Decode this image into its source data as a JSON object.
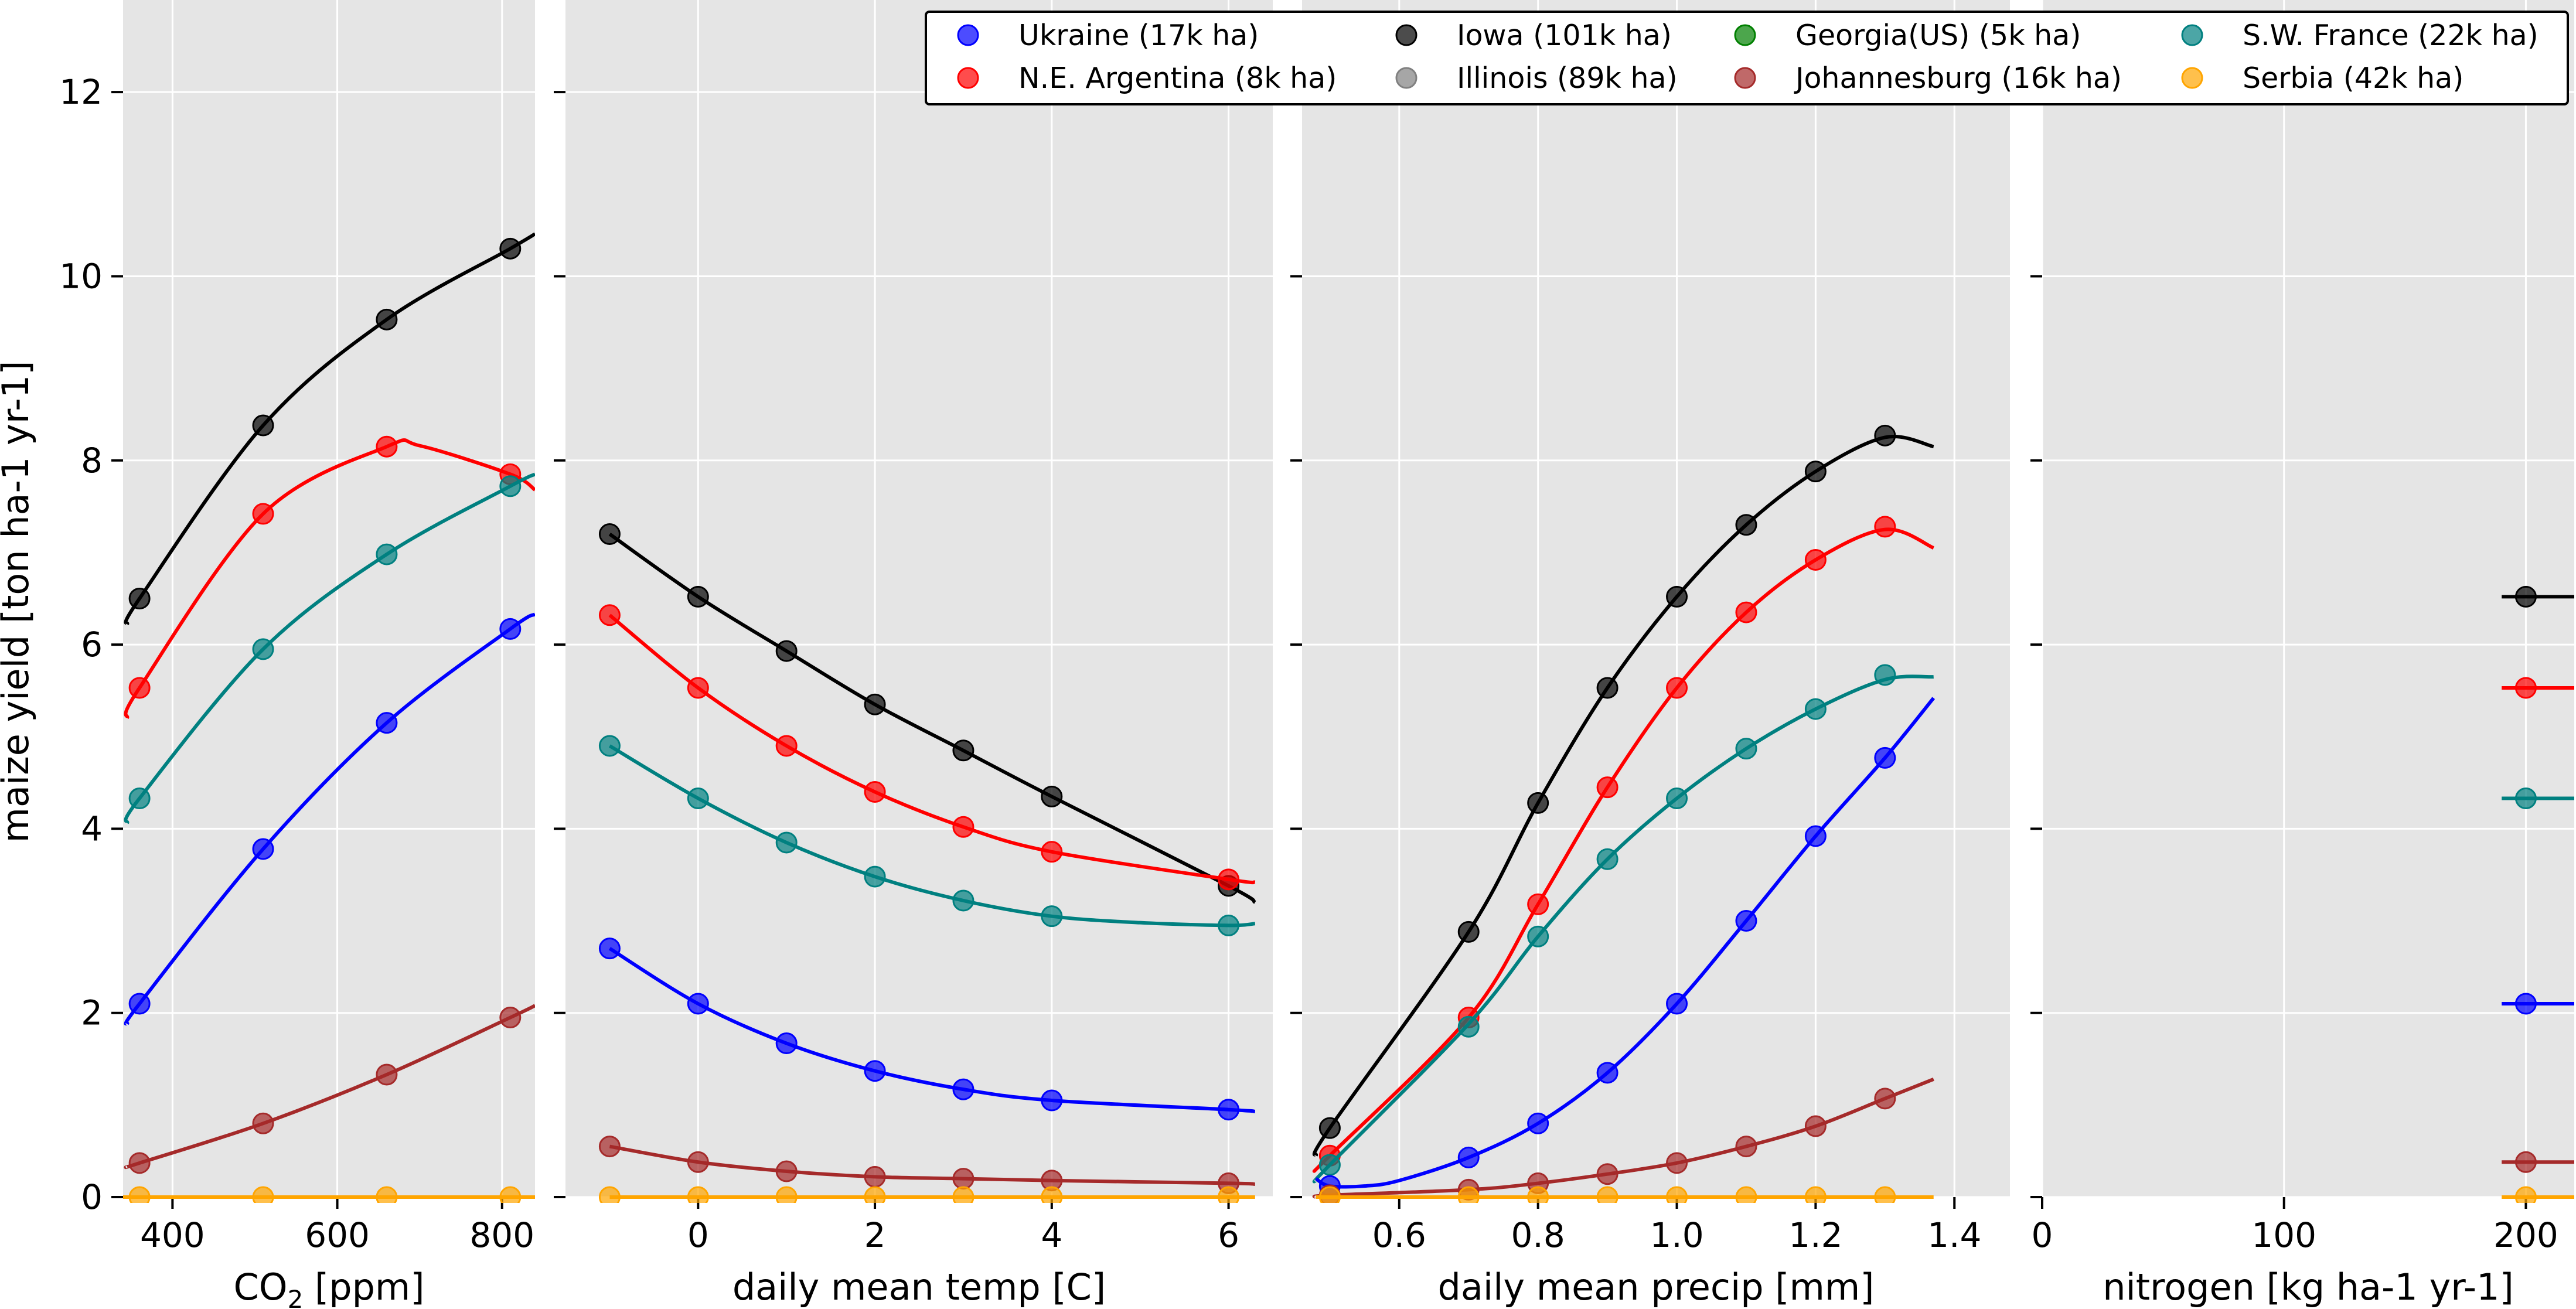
{
  "chart_data": {
    "type": "line",
    "ylabel": "maize yield [ton ha-1 yr-1]",
    "ylim": [
      0,
      13
    ],
    "yticks": [
      0,
      2,
      4,
      6,
      8,
      10,
      12
    ],
    "grid": true,
    "legend_position": "top-right",
    "legend": [
      {
        "label": "Ukraine (17k ha)",
        "color": "#0000ff"
      },
      {
        "label": "N.E. Argentina (8k ha)",
        "color": "#ff0000"
      },
      {
        "label": "Iowa (101k ha)",
        "color": "#000000"
      },
      {
        "label": "Illinois (89k ha)",
        "color": "#808080"
      },
      {
        "label": "Georgia(US) (5k ha)",
        "color": "#008000"
      },
      {
        "label": "Johannesburg (16k ha)",
        "color": "#a52a2a"
      },
      {
        "label": "S.W. France (22k ha)",
        "color": "#008080"
      },
      {
        "label": "Serbia (42k ha)",
        "color": "#ffa500"
      }
    ],
    "panels": [
      {
        "xlabel": "CO",
        "xlabel_sub": "2",
        "xlabel_suffix": " [ppm]",
        "xlim": [
          340,
          840
        ],
        "xticks": [
          400,
          600,
          800
        ],
        "points_x": [
          360,
          510,
          660,
          810
        ],
        "series": [
          {
            "color": "#000000",
            "points": [
              6.5,
              8.38,
              9.53,
              10.3
            ],
            "curve": [
              [
                345,
                6.22
              ],
              [
                360,
                6.5
              ],
              [
                510,
                8.38
              ],
              [
                660,
                9.53
              ],
              [
                810,
                10.3
              ],
              [
                840,
                10.46
              ]
            ]
          },
          {
            "color": "#ff0000",
            "points": [
              5.53,
              7.42,
              8.15,
              7.85
            ],
            "curve": [
              [
                345,
                5.2
              ],
              [
                360,
                5.53
              ],
              [
                510,
                7.42
              ],
              [
                660,
                8.15
              ],
              [
                700,
                8.16
              ],
              [
                810,
                7.85
              ],
              [
                840,
                7.68
              ]
            ]
          },
          {
            "color": "#008080",
            "points": [
              4.33,
              5.95,
              6.98,
              7.72
            ],
            "curve": [
              [
                345,
                4.06
              ],
              [
                360,
                4.33
              ],
              [
                510,
                5.95
              ],
              [
                660,
                6.98
              ],
              [
                810,
                7.72
              ],
              [
                840,
                7.85
              ]
            ]
          },
          {
            "color": "#0000ff",
            "points": [
              2.1,
              3.78,
              5.15,
              6.17
            ],
            "curve": [
              [
                345,
                1.88
              ],
              [
                360,
                2.1
              ],
              [
                510,
                3.78
              ],
              [
                660,
                5.15
              ],
              [
                810,
                6.17
              ],
              [
                840,
                6.33
              ]
            ]
          },
          {
            "color": "#a52a2a",
            "points": [
              0.37,
              0.8,
              1.33,
              1.95
            ],
            "curve": [
              [
                345,
                0.33
              ],
              [
                360,
                0.37
              ],
              [
                510,
                0.8
              ],
              [
                660,
                1.33
              ],
              [
                810,
                1.95
              ],
              [
                840,
                2.08
              ]
            ]
          },
          {
            "color": "#ffa500",
            "points": [
              0,
              0,
              0,
              0
            ],
            "curve": [
              [
                345,
                0
              ],
              [
                360,
                0
              ],
              [
                840,
                0
              ]
            ]
          }
        ]
      },
      {
        "xlabel": "daily mean temp [C]",
        "xlim": [
          -1.5,
          6.5
        ],
        "xticks": [
          0,
          2,
          4,
          6
        ],
        "points_x": [
          -1,
          0,
          1,
          2,
          3,
          4,
          6
        ],
        "series": [
          {
            "color": "#000000",
            "points": [
              7.2,
              6.52,
              5.93,
              5.35,
              4.85,
              4.35,
              3.38
            ],
            "curve": [
              [
                -1,
                7.2
              ],
              [
                0,
                6.52
              ],
              [
                1,
                5.93
              ],
              [
                2,
                5.35
              ],
              [
                3,
                4.85
              ],
              [
                4,
                4.35
              ],
              [
                6,
                3.38
              ],
              [
                6.3,
                3.2
              ]
            ]
          },
          {
            "color": "#ff0000",
            "points": [
              6.32,
              5.53,
              4.9,
              4.4,
              4.02,
              3.75,
              3.45
            ],
            "curve": [
              [
                -1,
                6.32
              ],
              [
                0,
                5.53
              ],
              [
                1,
                4.9
              ],
              [
                2,
                4.4
              ],
              [
                3,
                4.02
              ],
              [
                4,
                3.75
              ],
              [
                6,
                3.45
              ],
              [
                6.3,
                3.42
              ]
            ]
          },
          {
            "color": "#008080",
            "points": [
              4.9,
              4.33,
              3.85,
              3.48,
              3.22,
              3.05,
              2.95
            ],
            "curve": [
              [
                -1,
                4.9
              ],
              [
                0,
                4.33
              ],
              [
                1,
                3.85
              ],
              [
                2,
                3.48
              ],
              [
                3,
                3.22
              ],
              [
                4,
                3.05
              ],
              [
                5,
                2.98
              ],
              [
                6,
                2.95
              ],
              [
                6.3,
                2.97
              ]
            ]
          },
          {
            "color": "#0000ff",
            "points": [
              2.7,
              2.1,
              1.67,
              1.37,
              1.17,
              1.05,
              0.95
            ],
            "curve": [
              [
                -1,
                2.7
              ],
              [
                0,
                2.1
              ],
              [
                1,
                1.67
              ],
              [
                2,
                1.37
              ],
              [
                3,
                1.17
              ],
              [
                4,
                1.05
              ],
              [
                6,
                0.95
              ],
              [
                6.3,
                0.93
              ]
            ]
          },
          {
            "color": "#a52a2a",
            "points": [
              0.55,
              0.38,
              0.28,
              0.22,
              0.2,
              0.18,
              0.15
            ],
            "curve": [
              [
                -1,
                0.55
              ],
              [
                0,
                0.38
              ],
              [
                1,
                0.28
              ],
              [
                2,
                0.22
              ],
              [
                3,
                0.2
              ],
              [
                4,
                0.18
              ],
              [
                6,
                0.15
              ],
              [
                6.3,
                0.14
              ]
            ]
          },
          {
            "color": "#ffa500",
            "points": [
              0,
              0,
              0,
              0,
              0,
              0,
              0
            ],
            "curve": [
              [
                -1,
                0
              ],
              [
                6.3,
                0
              ]
            ]
          }
        ]
      },
      {
        "xlabel": "daily mean precip [mm]",
        "xlim": [
          0.46,
          1.48
        ],
        "xticks": [
          0.6,
          0.8,
          1.0,
          1.2,
          1.4
        ],
        "xtick_labels": [
          "0.6",
          "0.8",
          "1.0",
          "1.2",
          "1.4"
        ],
        "points_x": [
          0.5,
          0.7,
          0.8,
          0.9,
          1.0,
          1.1,
          1.2,
          1.3
        ],
        "series": [
          {
            "color": "#000000",
            "points": [
              0.75,
              2.88,
              4.28,
              5.53,
              6.52,
              7.3,
              7.88,
              8.27
            ],
            "curve": [
              [
                0.48,
                0.45
              ],
              [
                0.5,
                0.75
              ],
              [
                0.7,
                2.88
              ],
              [
                0.8,
                4.28
              ],
              [
                0.9,
                5.53
              ],
              [
                1.0,
                6.52
              ],
              [
                1.1,
                7.3
              ],
              [
                1.2,
                7.88
              ],
              [
                1.3,
                8.25
              ],
              [
                1.37,
                8.15
              ]
            ]
          },
          {
            "color": "#ff0000",
            "points": [
              0.45,
              1.95,
              3.18,
              4.45,
              5.53,
              6.35,
              6.92,
              7.28
            ],
            "curve": [
              [
                0.48,
                0.3
              ],
              [
                0.5,
                0.45
              ],
              [
                0.7,
                1.95
              ],
              [
                0.8,
                3.18
              ],
              [
                0.9,
                4.45
              ],
              [
                1.0,
                5.53
              ],
              [
                1.1,
                6.35
              ],
              [
                1.2,
                6.92
              ],
              [
                1.3,
                7.25
              ],
              [
                1.37,
                7.05
              ]
            ]
          },
          {
            "color": "#008080",
            "points": [
              0.35,
              1.85,
              2.83,
              3.67,
              4.33,
              4.87,
              5.3,
              5.67
            ],
            "curve": [
              [
                0.48,
                0.18
              ],
              [
                0.5,
                0.35
              ],
              [
                0.7,
                1.88
              ],
              [
                0.8,
                2.83
              ],
              [
                0.9,
                3.67
              ],
              [
                1.0,
                4.33
              ],
              [
                1.1,
                4.87
              ],
              [
                1.2,
                5.3
              ],
              [
                1.3,
                5.62
              ],
              [
                1.37,
                5.65
              ]
            ]
          },
          {
            "color": "#0000ff",
            "points": [
              0.12,
              0.43,
              0.8,
              1.35,
              2.1,
              3.0,
              3.92,
              4.77
            ],
            "curve": [
              [
                0.48,
                0.2
              ],
              [
                0.5,
                0.12
              ],
              [
                0.55,
                0.12
              ],
              [
                0.6,
                0.18
              ],
              [
                0.7,
                0.43
              ],
              [
                0.8,
                0.8
              ],
              [
                0.9,
                1.35
              ],
              [
                1.0,
                2.1
              ],
              [
                1.1,
                3.0
              ],
              [
                1.2,
                3.92
              ],
              [
                1.3,
                4.77
              ],
              [
                1.37,
                5.42
              ]
            ]
          },
          {
            "color": "#a52a2a",
            "points": [
              0.02,
              0.08,
              0.15,
              0.25,
              0.37,
              0.55,
              0.77,
              1.07
            ],
            "curve": [
              [
                0.48,
                0.0
              ],
              [
                0.5,
                0.02
              ],
              [
                0.7,
                0.08
              ],
              [
                0.8,
                0.15
              ],
              [
                0.9,
                0.25
              ],
              [
                1.0,
                0.37
              ],
              [
                1.1,
                0.55
              ],
              [
                1.2,
                0.77
              ],
              [
                1.3,
                1.07
              ],
              [
                1.37,
                1.28
              ]
            ]
          },
          {
            "color": "#ffa500",
            "points": [
              0,
              0,
              0,
              0,
              0,
              0,
              0,
              0
            ],
            "curve": [
              [
                0.48,
                0
              ],
              [
                1.37,
                0
              ]
            ]
          }
        ]
      },
      {
        "xlabel": "nitrogen [kg ha-1 yr-1]",
        "xlim": [
          0,
          220
        ],
        "xticks": [
          0,
          100,
          200
        ],
        "points_x": [
          200
        ],
        "series": [
          {
            "color": "#000000",
            "points": [
              6.52
            ],
            "curve": [
              [
                190,
                6.52
              ],
              [
                220,
                6.52
              ]
            ]
          },
          {
            "color": "#ff0000",
            "points": [
              5.53
            ],
            "curve": [
              [
                190,
                5.53
              ],
              [
                220,
                5.53
              ]
            ]
          },
          {
            "color": "#008080",
            "points": [
              4.33
            ],
            "curve": [
              [
                190,
                4.33
              ],
              [
                220,
                4.33
              ]
            ]
          },
          {
            "color": "#0000ff",
            "points": [
              2.1
            ],
            "curve": [
              [
                190,
                2.1
              ],
              [
                220,
                2.1
              ]
            ]
          },
          {
            "color": "#a52a2a",
            "points": [
              0.38
            ],
            "curve": [
              [
                190,
                0.38
              ],
              [
                220,
                0.38
              ]
            ]
          },
          {
            "color": "#ffa500",
            "points": [
              0
            ],
            "curve": [
              [
                190,
                0
              ],
              [
                220,
                0
              ]
            ]
          }
        ]
      }
    ]
  }
}
